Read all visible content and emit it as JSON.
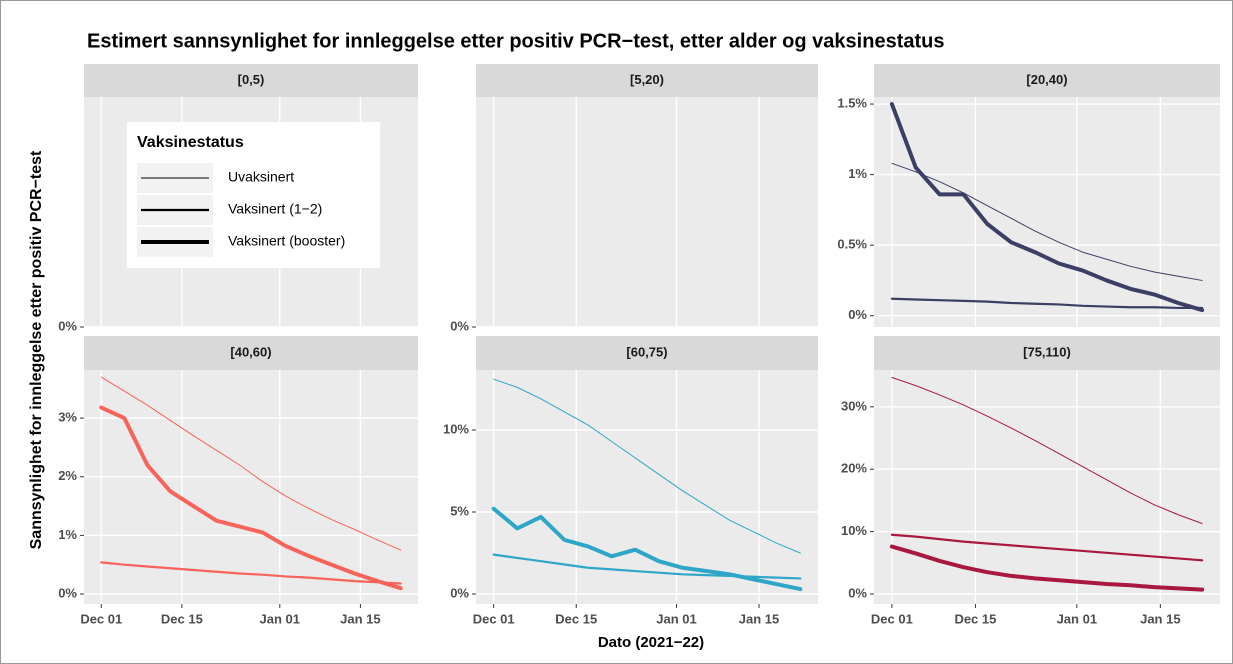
{
  "title": "Estimert sannsynlighet for innleggelse etter positiv PCR−test, etter alder og vaksinestatus",
  "x_label": "Dato (2021−22)",
  "y_label": "Sannsynlighet for innleggelse etter positiv PCR−test",
  "x": [
    0,
    4,
    8,
    12,
    16,
    20,
    24,
    28,
    32,
    36,
    40,
    44,
    48,
    52
  ],
  "xlim": [
    -3,
    55
  ],
  "xticks": [
    {
      "value": 0,
      "label": "Dec 01"
    },
    {
      "value": 14,
      "label": "Dec 15"
    },
    {
      "value": 31,
      "label": "Jan 01"
    },
    {
      "value": 45,
      "label": "Jan 15"
    }
  ],
  "legend": {
    "title": "Vaksinestatus",
    "entries": [
      {
        "label": "Uvaksinert",
        "width": 1
      },
      {
        "label": "Vaksinert (1−2)",
        "width": 2.2
      },
      {
        "label": "Vaksinert (booster)",
        "width": 4
      }
    ]
  },
  "chart_data": [
    {
      "type": "line",
      "title": "[0,5)",
      "ylim": [
        0,
        1
      ],
      "yticks": [
        {
          "value": 0,
          "label": "0%"
        }
      ],
      "color": "#000000",
      "series": []
    },
    {
      "type": "line",
      "title": "[5,20)",
      "ylim": [
        0,
        1
      ],
      "yticks": [
        {
          "value": 0,
          "label": "0%"
        }
      ],
      "color": "#000000",
      "series": []
    },
    {
      "type": "line",
      "title": "[20,40)",
      "ylim": [
        -0.08,
        1.55
      ],
      "yticks": [
        {
          "value": 0,
          "label": "0%"
        },
        {
          "value": 0.5,
          "label": "0.5%"
        },
        {
          "value": 1,
          "label": "1%"
        },
        {
          "value": 1.5,
          "label": "1.5%"
        }
      ],
      "color": "#3b3f63",
      "series": [
        {
          "values": [
            1.08,
            1.02,
            0.95,
            0.87,
            0.78,
            0.69,
            0.6,
            0.52,
            0.45,
            0.4,
            0.35,
            0.31,
            0.28,
            0.25
          ]
        },
        {
          "values": [
            0.12,
            0.115,
            0.11,
            0.105,
            0.1,
            0.09,
            0.085,
            0.08,
            0.07,
            0.065,
            0.06,
            0.06,
            0.055,
            0.055
          ]
        },
        {
          "values": [
            1.5,
            1.05,
            0.86,
            0.86,
            0.65,
            0.52,
            0.45,
            0.37,
            0.32,
            0.25,
            0.19,
            0.15,
            0.09,
            0.04
          ]
        }
      ]
    },
    {
      "type": "line",
      "title": "[40,60)",
      "ylim": [
        -0.17,
        3.82
      ],
      "yticks": [
        {
          "value": 0,
          "label": "0%"
        },
        {
          "value": 1,
          "label": "1%"
        },
        {
          "value": 2,
          "label": "2%"
        },
        {
          "value": 3,
          "label": "3%"
        }
      ],
      "color": "#f8635a",
      "series": [
        {
          "values": [
            3.7,
            3.46,
            3.22,
            2.96,
            2.7,
            2.45,
            2.2,
            1.92,
            1.67,
            1.46,
            1.27,
            1.1,
            0.92,
            0.75
          ]
        },
        {
          "values": [
            0.54,
            0.5,
            0.47,
            0.44,
            0.41,
            0.38,
            0.35,
            0.33,
            0.3,
            0.28,
            0.25,
            0.22,
            0.2,
            0.18
          ]
        },
        {
          "values": [
            3.18,
            3.0,
            2.2,
            1.75,
            1.5,
            1.25,
            1.15,
            1.05,
            0.82,
            0.65,
            0.5,
            0.35,
            0.22,
            0.1
          ]
        }
      ]
    },
    {
      "type": "line",
      "title": "[60,75)",
      "ylim": [
        -0.61,
        13.66
      ],
      "yticks": [
        {
          "value": 0,
          "label": "0%"
        },
        {
          "value": 5,
          "label": "5%"
        },
        {
          "value": 10,
          "label": "10%"
        }
      ],
      "color": "#2ea6c8",
      "series": [
        {
          "values": [
            13.1,
            12.6,
            11.9,
            11.1,
            10.3,
            9.3,
            8.3,
            7.3,
            6.3,
            5.4,
            4.5,
            3.8,
            3.1,
            2.5
          ]
        },
        {
          "values": [
            2.4,
            2.2,
            2.0,
            1.8,
            1.6,
            1.5,
            1.4,
            1.3,
            1.2,
            1.15,
            1.1,
            1.05,
            1.0,
            0.95
          ]
        },
        {
          "values": [
            5.2,
            4.0,
            4.7,
            3.3,
            2.9,
            2.3,
            2.7,
            2.0,
            1.6,
            1.4,
            1.2,
            0.9,
            0.6,
            0.3
          ]
        }
      ]
    },
    {
      "type": "line",
      "title": "[75,110)",
      "ylim": [
        -1.6,
        35.9
      ],
      "yticks": [
        {
          "value": 0,
          "label": "0%"
        },
        {
          "value": 10,
          "label": "10%"
        },
        {
          "value": 20,
          "label": "20%"
        },
        {
          "value": 30,
          "label": "30%"
        }
      ],
      "color": "#a8183f",
      "series": [
        {
          "values": [
            34.7,
            33.4,
            31.9,
            30.3,
            28.5,
            26.6,
            24.6,
            22.5,
            20.4,
            18.3,
            16.2,
            14.3,
            12.7,
            11.3
          ]
        },
        {
          "values": [
            9.5,
            9.2,
            8.8,
            8.4,
            8.1,
            7.8,
            7.5,
            7.2,
            6.9,
            6.6,
            6.3,
            6.0,
            5.7,
            5.4
          ]
        },
        {
          "values": [
            7.6,
            6.5,
            5.3,
            4.3,
            3.5,
            2.9,
            2.5,
            2.2,
            1.9,
            1.6,
            1.4,
            1.1,
            0.9,
            0.7
          ]
        }
      ]
    }
  ]
}
